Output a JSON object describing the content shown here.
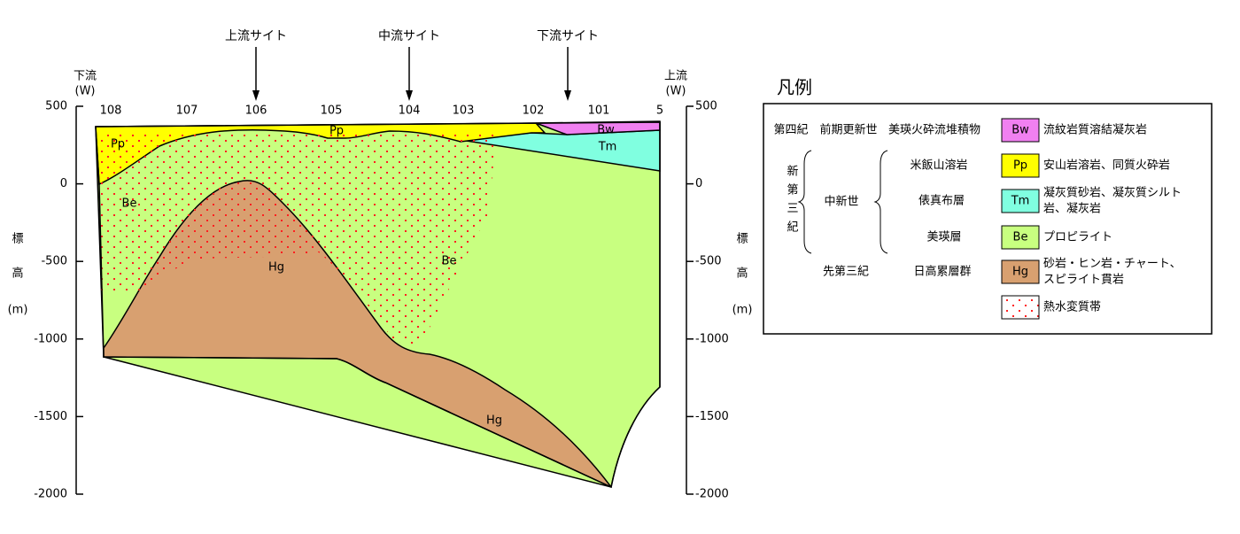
{
  "section": {
    "sites": [
      "上流サイト",
      "中流サイト",
      "下流サイト"
    ],
    "left_end": [
      "下流",
      "(W)"
    ],
    "right_end": [
      "上流",
      "(W)"
    ],
    "elevation_label": [
      "標",
      "高",
      "(m)"
    ],
    "yticks": [
      500,
      0,
      -500,
      -1000,
      -1500,
      -2000
    ],
    "km_markers": [
      "108",
      "107",
      "106",
      "105",
      "104",
      "103",
      "102",
      "101",
      "5"
    ],
    "layer_labels": [
      "Pp",
      "Pp",
      "Bw",
      "Tm",
      "Be",
      "Be",
      "Hg",
      "Hg"
    ]
  },
  "legend": {
    "title": "凡例",
    "eras": [
      {
        "name": "第四紀",
        "epoch": "前期更新世"
      },
      {
        "name": "新第三紀",
        "epoch": "中新世"
      },
      {
        "name": "先第三紀"
      }
    ],
    "items": [
      {
        "formation": "美瑛火砕流堆積物",
        "symbol": "Bw",
        "color": "#f080f0",
        "description": [
          "流紋岩質溶結凝灰岩"
        ]
      },
      {
        "formation": "米飯山溶岩",
        "symbol": "Pp",
        "color": "#ffff00",
        "description": [
          "安山岩溶岩、同質火砕岩"
        ]
      },
      {
        "formation": "俵真布層",
        "symbol": "Tm",
        "color": "#80ffe0",
        "description": [
          "凝灰質砂岩、凝灰質シルト",
          "岩、凝灰岩"
        ]
      },
      {
        "formation": "美瑛層",
        "symbol": "Be",
        "color": "#c8ff80",
        "description": [
          "プロピライト"
        ]
      },
      {
        "formation": "日高累層群",
        "symbol": "Hg",
        "color": "#d8a070",
        "description": [
          "砂岩・ヒン岩・チャート、",
          "スピライト貫岩"
        ]
      },
      {
        "description": [
          "熱水変質帯"
        ]
      }
    ]
  }
}
